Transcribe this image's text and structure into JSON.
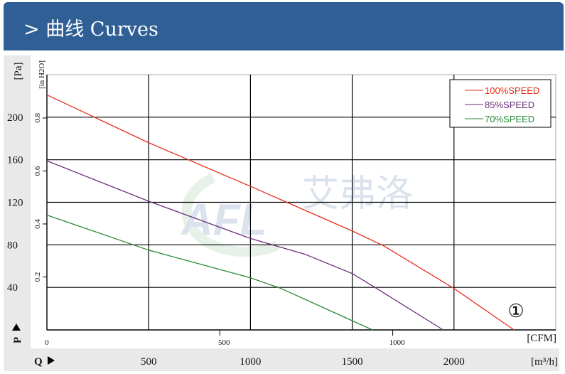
{
  "header": {
    "title": "曲线 Curves",
    "chevron": ">"
  },
  "watermark": {
    "text": "AFL 艾弗洛"
  },
  "chart_data": {
    "type": "line",
    "title": "曲线 Curves",
    "xlabel": "[m³/h]",
    "xlabel_secondary": "[CFM]",
    "ylabel": "[Pa]",
    "ylabel_secondary": "[in H2O]",
    "y_axis_marker": "P",
    "x_axis_marker": "Q",
    "xlim": [
      0,
      2500
    ],
    "ylim": [
      0,
      240
    ],
    "x_ticks": [
      500,
      1000,
      1500,
      2000
    ],
    "y_ticks": [
      40,
      80,
      120,
      160,
      200
    ],
    "x_secondary_ticks": [
      "0",
      "500",
      "1000"
    ],
    "y_secondary_ticks": [
      "0.2",
      "0.4",
      "0.6",
      "0.8"
    ],
    "zero_label": "0",
    "grid": true,
    "legend_placement": "top-right",
    "annotation": "①",
    "series": [
      {
        "name": "100%SPEED",
        "color": "#e8301c",
        "x": [
          0,
          500,
          1000,
          1500,
          1655,
          2000,
          2295
        ],
        "y": [
          221,
          176,
          135,
          93,
          79,
          39,
          0
        ]
      },
      {
        "name": "85%SPEED",
        "color": "#6a2f78",
        "x": [
          0,
          500,
          1000,
          1270,
          1500,
          1620,
          1947
        ],
        "y": [
          159,
          121,
          86,
          71,
          53,
          39,
          0
        ]
      },
      {
        "name": "70%SPEED",
        "color": "#2a8a3a",
        "x": [
          0,
          500,
          1000,
          1150,
          1300,
          1600
        ],
        "y": [
          108,
          75,
          49,
          39,
          26,
          0
        ]
      }
    ]
  }
}
